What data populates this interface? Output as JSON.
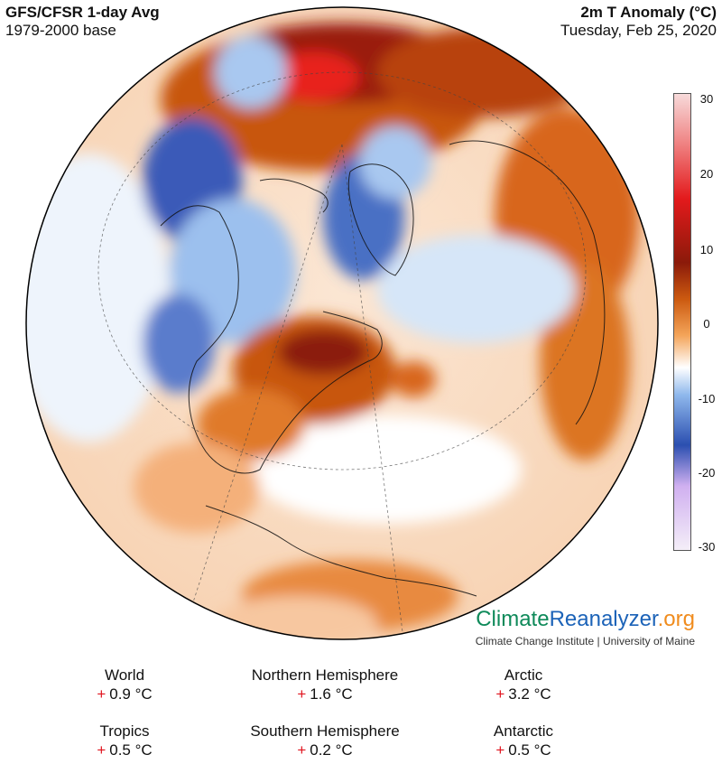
{
  "header": {
    "left_title": "GFS/CFSR 1-day Avg",
    "left_subtitle": "1979-2000 base",
    "right_title": "2m T Anomaly (°C)",
    "right_subtitle": "Tuesday, Feb 25, 2020"
  },
  "colorbar": {
    "ticks": [
      "30",
      "20",
      "10",
      "0",
      "-10",
      "-20",
      "-30"
    ],
    "colors": {
      "hot": "#e31a1c",
      "dark_warm": "#8b1a0a",
      "warm": "#d8661a",
      "neutral": "#ffffff",
      "cool": "#8fb8ec",
      "cold": "#2b4fb0",
      "very_cold": "#d0b0f0"
    }
  },
  "logo": {
    "brand_part1": "Climate",
    "brand_part2": "Reanalyzer",
    "brand_part3": ".org",
    "tagline": "Climate Change Institute | University of Maine"
  },
  "stats": [
    {
      "label": "World",
      "sign": "+",
      "value": "0.9 °C"
    },
    {
      "label": "Northern Hemisphere",
      "sign": "+",
      "value": "1.6 °C"
    },
    {
      "label": "Arctic",
      "sign": "+",
      "value": "3.2 °C"
    },
    {
      "label": "Tropics",
      "sign": "+",
      "value": "0.5 °C"
    },
    {
      "label": "Southern Hemisphere",
      "sign": "+",
      "value": "0.2 °C"
    },
    {
      "label": "Antarctic",
      "sign": "+",
      "value": "0.5 °C"
    }
  ]
}
